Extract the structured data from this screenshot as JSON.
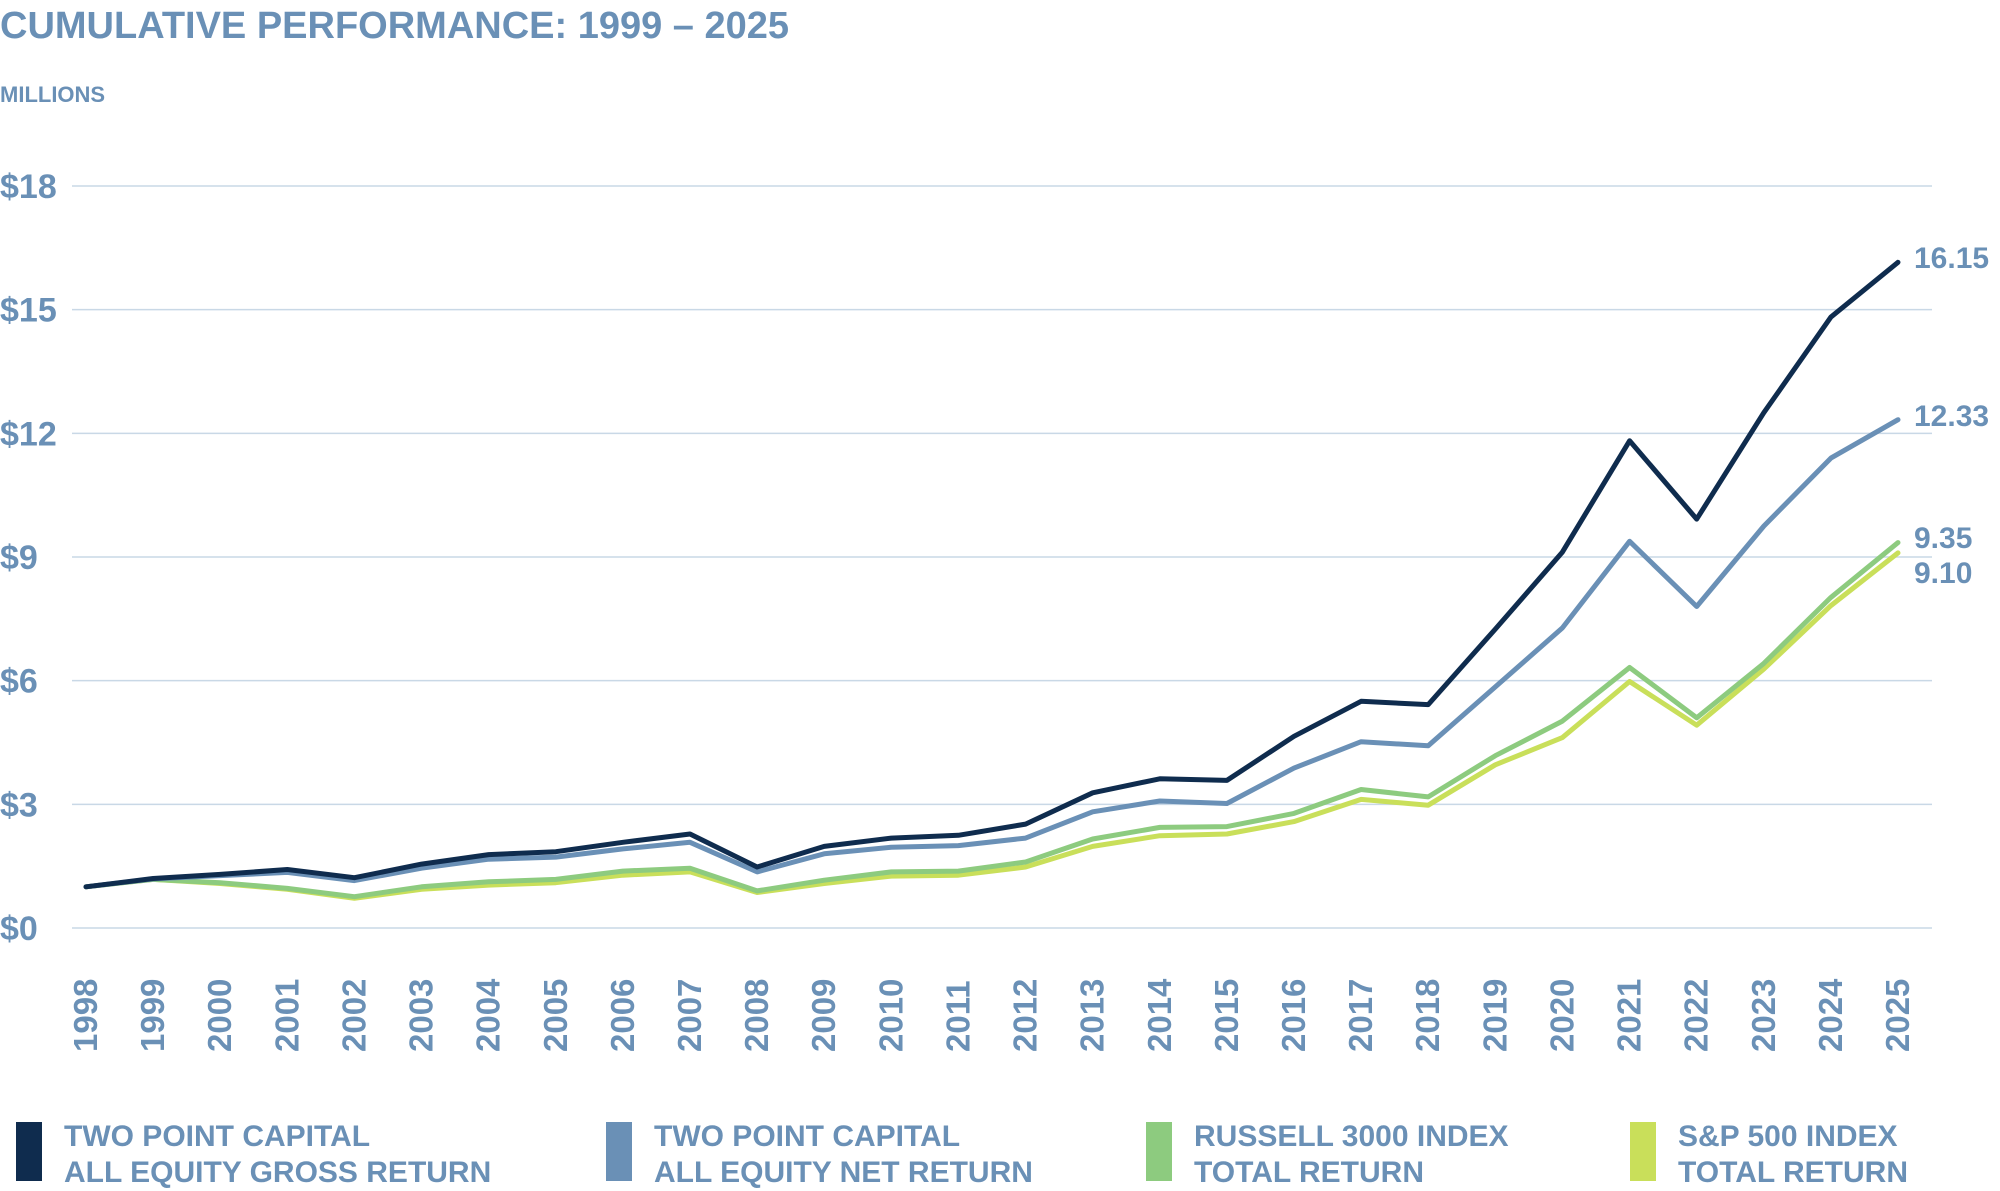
{
  "chart_data": {
    "type": "line",
    "title": "CUMULATIVE PERFORMANCE: 1999 – 2025",
    "subtitle": "MILLIONS",
    "xlabel": "",
    "ylabel": "MILLIONS",
    "ylim": [
      0,
      18
    ],
    "yticks": [
      0,
      3,
      6,
      9,
      12,
      15,
      18
    ],
    "ytick_labels": [
      "$0",
      "$3",
      "$6",
      "$9",
      "$12",
      "$15",
      "$18"
    ],
    "grid": true,
    "legend_position": "bottom",
    "categories": [
      "1998",
      "1999",
      "2000",
      "2001",
      "2002",
      "2003",
      "2004",
      "2005",
      "2006",
      "2007",
      "2008",
      "2009",
      "2010",
      "2011",
      "2012",
      "2013",
      "2014",
      "2015",
      "2016",
      "2017",
      "2018",
      "2019",
      "2020",
      "2021",
      "2022",
      "2023",
      "2024",
      "2025"
    ],
    "series": [
      {
        "name": "TWO POINT CAPITAL ALL EQUITY GROSS RETURN",
        "legend_line1": "TWO POINT CAPITAL",
        "legend_line2": "ALL EQUITY GROSS RETURN",
        "color": "#0f2c4e",
        "end_label": "16.15",
        "values": [
          1.0,
          1.2,
          1.3,
          1.42,
          1.22,
          1.55,
          1.78,
          1.85,
          2.08,
          2.28,
          1.48,
          1.98,
          2.18,
          2.25,
          2.52,
          3.28,
          3.62,
          3.58,
          4.65,
          5.5,
          5.42,
          7.25,
          9.12,
          11.82,
          9.92,
          12.5,
          14.82,
          16.15
        ]
      },
      {
        "name": "TWO POINT CAPITAL ALL EQUITY NET RETURN",
        "legend_line1": "TWO POINT CAPITAL",
        "legend_line2": "ALL EQUITY NET RETURN",
        "color": "#6a90b6",
        "end_label": "12.33",
        "values": [
          1.0,
          1.19,
          1.27,
          1.35,
          1.15,
          1.45,
          1.67,
          1.72,
          1.92,
          2.08,
          1.36,
          1.8,
          1.96,
          2.0,
          2.18,
          2.82,
          3.08,
          3.02,
          3.88,
          4.52,
          4.42,
          5.85,
          7.28,
          9.38,
          7.8,
          9.75,
          11.4,
          12.33
        ]
      },
      {
        "name": "RUSSELL 3000 INDEX TOTAL RETURN",
        "legend_line1": "RUSSELL 3000 INDEX",
        "legend_line2": "TOTAL RETURN",
        "color": "#8dcb7f",
        "end_label": "9.35",
        "values": [
          1.0,
          1.18,
          1.1,
          0.96,
          0.76,
          1.0,
          1.12,
          1.18,
          1.38,
          1.45,
          0.9,
          1.16,
          1.36,
          1.38,
          1.6,
          2.16,
          2.44,
          2.46,
          2.78,
          3.36,
          3.18,
          4.18,
          5.02,
          6.32,
          5.1,
          6.42,
          8.02,
          9.35
        ]
      },
      {
        "name": "S&P 500 INDEX TOTAL RETURN",
        "legend_line1": "S&P 500 INDEX",
        "legend_line2": "TOTAL RETURN",
        "color": "#c9df5a",
        "end_label": "9.10",
        "values": [
          1.0,
          1.18,
          1.08,
          0.94,
          0.72,
          0.94,
          1.04,
          1.1,
          1.28,
          1.36,
          0.86,
          1.08,
          1.26,
          1.28,
          1.48,
          1.98,
          2.24,
          2.28,
          2.58,
          3.12,
          2.98,
          3.96,
          4.62,
          5.98,
          4.92,
          6.28,
          7.82,
          9.1
        ]
      }
    ]
  }
}
